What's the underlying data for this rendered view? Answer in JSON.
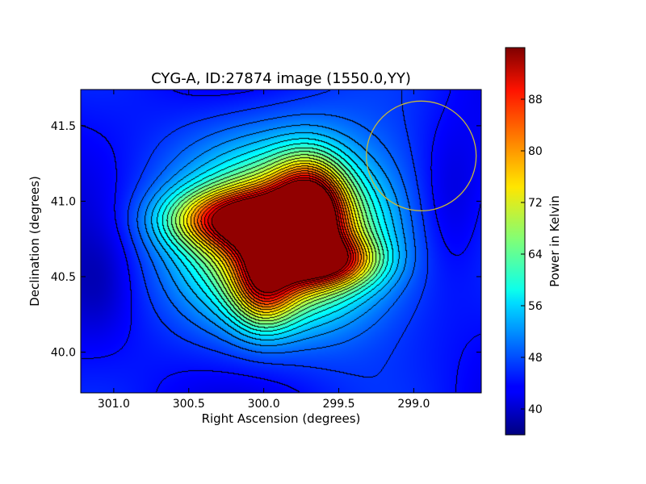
{
  "chart_data": {
    "type": "heatmap",
    "title": "CYG-A, ID:27874 image (1550.0,YY)",
    "xlabel": "Right Ascension (degrees)",
    "ylabel": "Declination (degrees)",
    "colorbar_label": "Power in Kelvin",
    "xlim": [
      301.22,
      298.55
    ],
    "ylim": [
      39.73,
      41.74
    ],
    "x_inverted": true,
    "x_ticks": [
      301.0,
      300.5,
      300.0,
      299.5,
      299.0
    ],
    "x_tick_labels": [
      "301.0",
      "300.5",
      "300.0",
      "299.5",
      "299.0"
    ],
    "y_ticks": [
      40.0,
      40.5,
      41.0,
      41.5
    ],
    "y_tick_labels": [
      "40.0",
      "40.5",
      "41.0",
      "41.5"
    ],
    "colorbar_range": [
      36,
      96
    ],
    "colorbar_ticks": [
      40,
      48,
      56,
      64,
      72,
      80,
      88
    ],
    "colorbar_tick_labels": [
      "40",
      "48",
      "56",
      "64",
      "72",
      "80",
      "88"
    ],
    "colormap": "jet",
    "contours": "black, ~20 levels",
    "peak_value_kelvin": 95,
    "peak_ra_deg": 299.85,
    "peak_dec_deg": 40.75,
    "marker_circle": {
      "ra_deg": 298.95,
      "dec_deg": 41.3,
      "color": "#c8b83a"
    }
  }
}
